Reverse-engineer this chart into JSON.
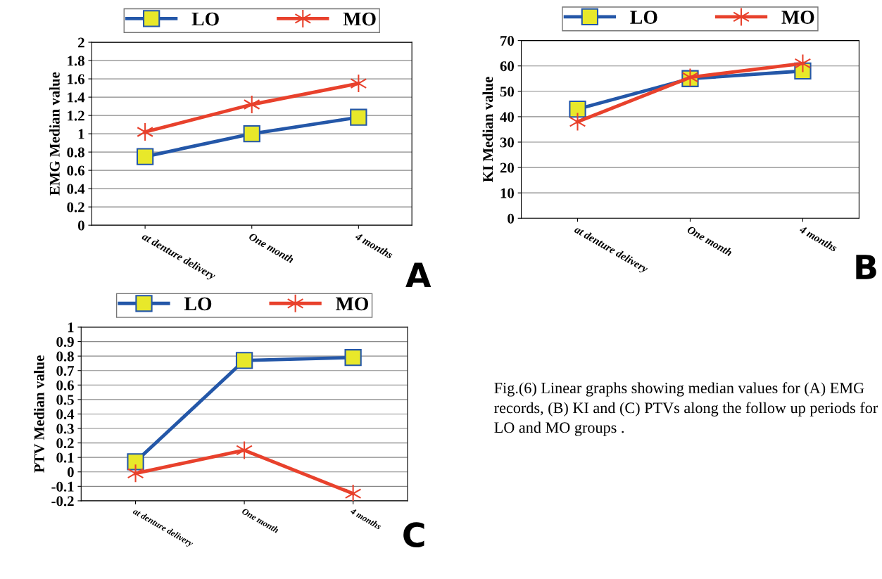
{
  "chart_data": [
    {
      "type": "line",
      "ylabel": "EMG Median value",
      "categories": [
        "at denture delivery",
        "One month",
        "4 months"
      ],
      "series": [
        {
          "name": "LO",
          "color": "#2457a8",
          "values": [
            0.75,
            1.0,
            1.18
          ],
          "marker": "square"
        },
        {
          "name": "MO",
          "color": "#e8412c",
          "values": [
            1.02,
            1.32,
            1.55
          ],
          "marker": "cross"
        }
      ],
      "ylim": [
        0,
        2
      ],
      "yticks": [
        0,
        0.2,
        0.4,
        0.6,
        0.8,
        1,
        1.2,
        1.4,
        1.6,
        1.8,
        2
      ],
      "grid": "y",
      "legend": "top",
      "annotations": [
        "A"
      ]
    },
    {
      "type": "line",
      "ylabel": "KI Median value",
      "categories": [
        "at denture delivery",
        "One month",
        "4 months"
      ],
      "series": [
        {
          "name": "LO",
          "color": "#2457a8",
          "values": [
            43,
            55,
            58
          ],
          "marker": "square"
        },
        {
          "name": "MO",
          "color": "#e8412c",
          "values": [
            38,
            55.5,
            61
          ],
          "marker": "cross"
        }
      ],
      "ylim": [
        0,
        70
      ],
      "yticks": [
        0,
        10,
        20,
        30,
        40,
        50,
        60,
        70
      ],
      "grid": "y",
      "legend": "top",
      "annotations": [
        "B"
      ]
    },
    {
      "type": "line",
      "ylabel": "PTV Median value",
      "categories": [
        "at denture delivery",
        "One month",
        "4 months"
      ],
      "series": [
        {
          "name": "LO",
          "color": "#2457a8",
          "values": [
            0.07,
            0.77,
            0.79
          ],
          "marker": "square"
        },
        {
          "name": "MO",
          "color": "#e8412c",
          "values": [
            -0.01,
            0.15,
            -0.15
          ],
          "marker": "cross"
        }
      ],
      "ylim": [
        -0.2,
        1
      ],
      "yticks": [
        -0.2,
        -0.1,
        0,
        0.1,
        0.2,
        0.3,
        0.4,
        0.5,
        0.6,
        0.7,
        0.8,
        0.9,
        1
      ],
      "grid": "y",
      "legend": "top",
      "annotations": [
        "C"
      ]
    },
    {
      "type": "other",
      "annotations": [
        "Fig.(6) Linear graphs showing median values for (A) EMG records, (B) KI and (C) PTVs along the follow up periods for LO and MO groups ."
      ]
    }
  ]
}
